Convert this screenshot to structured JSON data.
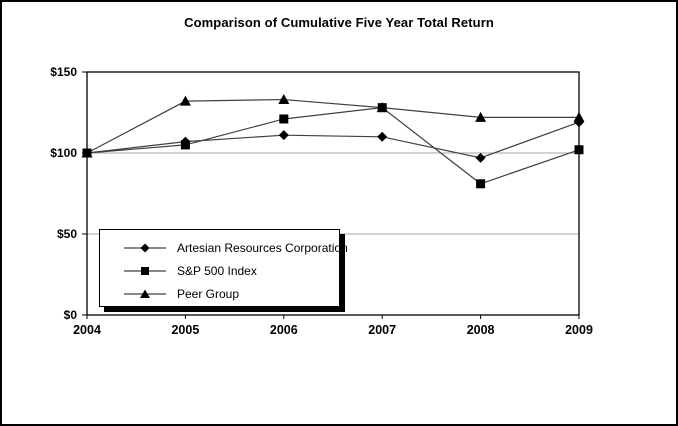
{
  "chart_data": {
    "type": "line",
    "title": "Comparison of Cumulative Five Year Total Return",
    "x": [
      "2004",
      "2005",
      "2006",
      "2007",
      "2008",
      "2009"
    ],
    "series": [
      {
        "name": "Artesian Resources Corporation",
        "marker": "diamond",
        "values": [
          100,
          107,
          111,
          110,
          97,
          119
        ]
      },
      {
        "name": "S&P 500 Index",
        "marker": "square",
        "values": [
          100,
          105,
          121,
          128,
          81,
          102
        ]
      },
      {
        "name": "Peer Group",
        "marker": "triangle",
        "values": [
          100,
          132,
          133,
          128,
          122,
          122
        ]
      }
    ],
    "ylim": [
      0,
      150
    ],
    "yticks": [
      0,
      50,
      100,
      150
    ],
    "ytick_labels": [
      "$0",
      "$50",
      "$100",
      "$150"
    ],
    "grid": "horizontal",
    "legend_position": "inside-bottom-left",
    "colors": {
      "axis": "#000000",
      "grid": "#a6a6a6",
      "line": "#404040",
      "marker": "#000000",
      "text": "#000000",
      "background": "#ffffff",
      "legend_shadow": "#000000"
    }
  }
}
